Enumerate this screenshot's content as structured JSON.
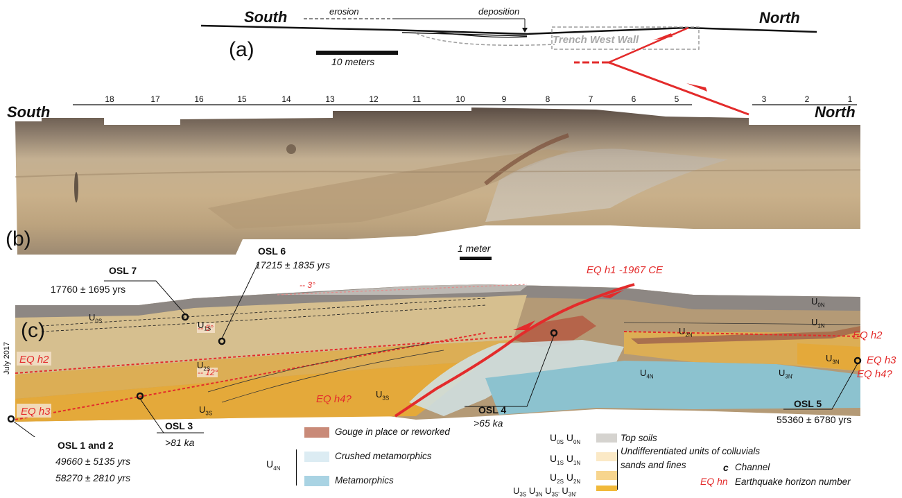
{
  "panel_a": {
    "label": "(a)",
    "south": "South",
    "north": "North",
    "erosion": "erosion",
    "deposition": "deposition",
    "trench_label": "Trench West Wall",
    "scale_label": "10 meters"
  },
  "panel_b": {
    "label": "(b)",
    "south": "South",
    "north": "North",
    "ticks": [
      "18",
      "17",
      "16",
      "15",
      "14",
      "13",
      "12",
      "11",
      "10",
      "9",
      "8",
      "7",
      "6",
      "5",
      "3",
      "2",
      "1"
    ],
    "scale_label": "1 meter"
  },
  "panel_c": {
    "label": "(c)",
    "date": "July 2017",
    "angles": {
      "a3": "3°",
      "a5": "5°",
      "a12": "12°"
    },
    "units": {
      "u0s": {
        "base": "U",
        "sub": "0S"
      },
      "u1s": {
        "base": "U",
        "sub": "1S"
      },
      "u2s": {
        "base": "U",
        "sub": "2S"
      },
      "u3s_a": {
        "base": "U",
        "sub": "3S"
      },
      "u3s_b": {
        "base": "U",
        "sub": "3S"
      },
      "u0n": {
        "base": "U",
        "sub": "0N"
      },
      "u1n": {
        "base": "U",
        "sub": "1N"
      },
      "u2n": {
        "base": "U",
        "sub": "2N"
      },
      "u3n": {
        "base": "U",
        "sub": "3N"
      },
      "u3np": {
        "base": "U",
        "sub": "3N'"
      },
      "u4n": {
        "base": "U",
        "sub": "4N"
      }
    },
    "eq": {
      "h1": "EQ h1 -1967 CE",
      "h2_left": "EQ h2",
      "h2_right": "EQ h2",
      "h3_left": "EQ h3",
      "h3_right": "EQ h3",
      "h4_mid": "EQ h4?",
      "h4_right": "EQ h4?"
    },
    "osl": {
      "osl7": {
        "title": "OSL 7",
        "age": "17760 ± 1695 yrs"
      },
      "osl6": {
        "title": "OSL 6",
        "age": "17215 ± 1835 yrs"
      },
      "osl3": {
        "title": "OSL 3",
        "age": ">81 ka"
      },
      "osl4": {
        "title": "OSL 4",
        "age": ">65 ka"
      },
      "osl5": {
        "title": "OSL 5",
        "age": "55360 ± 6780 yrs"
      },
      "osl12": {
        "title": "OSL 1 and 2",
        "age1": "49660 ± 5135 yrs",
        "age2": "58270 ± 2810 yrs"
      }
    }
  },
  "legend": {
    "gouge": "Gouge in place or reworked",
    "u4n": {
      "base": "U",
      "sub": "4N"
    },
    "crushed": "Crushed metamorphics",
    "metamorphics": "Metamorphics",
    "topsoils": "Top soils",
    "undiff_line1": "Undifferentiated units of colluvials",
    "undiff_line2": "sands and fines",
    "channel_symbol": "c",
    "channel": "Channel",
    "eq_symbol": "EQ hn",
    "eq_desc": "Earthquake horizon number",
    "row_top": [
      {
        "base": "U",
        "sub": "0S"
      },
      {
        "base": "U",
        "sub": "0N"
      }
    ],
    "row_1": [
      {
        "base": "U",
        "sub": "1S"
      },
      {
        "base": "U",
        "sub": "1N"
      }
    ],
    "row_2": [
      {
        "base": "U",
        "sub": "2S"
      },
      {
        "base": "U",
        "sub": "2N"
      }
    ],
    "row_3": [
      {
        "base": "U",
        "sub": "3S"
      },
      {
        "base": "U",
        "sub": "3N"
      },
      {
        "base": "U",
        "sub": "3S'"
      },
      {
        "base": "U",
        "sub": "3N'"
      }
    ],
    "colors": {
      "gouge": "#c98a78",
      "crushed": "#dcecf3",
      "metamorphics": "#a9d3e3",
      "topsoils": "#d5d3cf",
      "u1": "#fbe9c6",
      "u2": "#f7d58e",
      "u3": "#f1b93a"
    }
  }
}
